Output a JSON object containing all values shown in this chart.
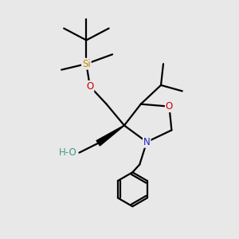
{
  "bg_color": "#e8e8e8",
  "atom_colors": {
    "C": "#000000",
    "N": "#2222cc",
    "O": "#cc0000",
    "Si": "#cc8800",
    "H": "#449988"
  },
  "bond_color": "#000000",
  "line_width": 1.6,
  "figsize": [
    3.0,
    3.0
  ],
  "dpi": 100,
  "xlim": [
    0,
    10
  ],
  "ylim": [
    0,
    10
  ]
}
